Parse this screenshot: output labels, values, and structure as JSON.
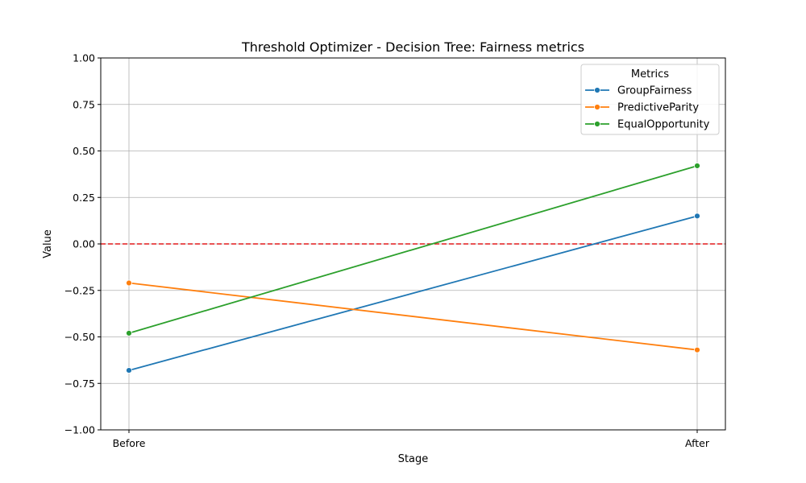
{
  "chart_data": {
    "type": "line",
    "title": "Threshold Optimizer - Decision Tree: Fairness metrics",
    "xlabel": "Stage",
    "ylabel": "Value",
    "categories": [
      "Before",
      "After"
    ],
    "ylim": [
      -1.0,
      1.0
    ],
    "yticks": [
      -1.0,
      -0.75,
      -0.5,
      -0.25,
      0.0,
      0.25,
      0.5,
      0.75,
      1.0
    ],
    "ytick_labels": [
      "−1.00",
      "−0.75",
      "−0.50",
      "−0.25",
      "0.00",
      "0.25",
      "0.50",
      "0.75",
      "1.00"
    ],
    "grid": true,
    "reference_line": {
      "y": 0.0,
      "color": "#e41a1c",
      "style": "dashed"
    },
    "legend": {
      "title": "Metrics",
      "placement": "top-right"
    },
    "series": [
      {
        "name": "GroupFairness",
        "color": "#1f77b4",
        "values": [
          -0.68,
          0.15
        ]
      },
      {
        "name": "PredictiveParity",
        "color": "#ff7f0e",
        "values": [
          -0.21,
          -0.57
        ]
      },
      {
        "name": "EqualOpportunity",
        "color": "#2ca02c",
        "values": [
          -0.48,
          0.42
        ]
      }
    ]
  }
}
